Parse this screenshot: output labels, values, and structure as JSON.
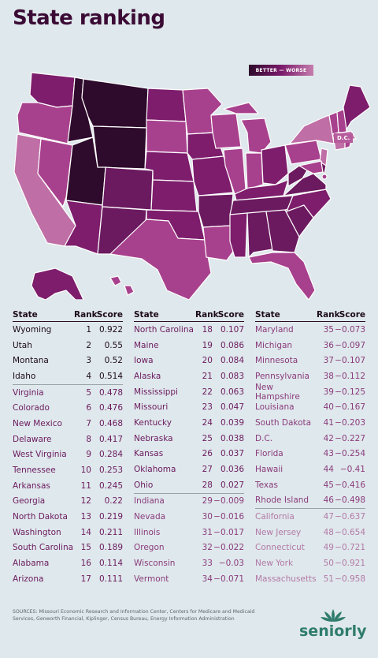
{
  "title": "State ranking",
  "legend": {
    "label": "BETTER — WORSE"
  },
  "dc_label": "D.C.",
  "table_headers": {
    "state": "State",
    "rank": "Rank",
    "score": "Score"
  },
  "chart_data": [
    {
      "type": "map",
      "color_scale": [
        "#2e0a2c",
        "#7a1a6a",
        "#c67dae"
      ]
    },
    {
      "type": "table",
      "columns": [
        "State",
        "Rank",
        "Score"
      ],
      "groups": [
        {
          "color": "#1c0a1b",
          "rows": [
            {
              "state": "Wyoming",
              "rank": "1",
              "score": "0.922"
            },
            {
              "state": "Utah",
              "rank": "2",
              "score": "0.55"
            },
            {
              "state": "Montana",
              "rank": "3",
              "score": "0.52"
            },
            {
              "state": "Idaho",
              "rank": "4",
              "score": "0.514"
            }
          ]
        },
        {
          "color": "#6b1a5f",
          "rows": [
            {
              "state": "Virginia",
              "rank": "5",
              "score": "0.478"
            },
            {
              "state": "Colorado",
              "rank": "6",
              "score": "0.476"
            },
            {
              "state": "New Mexico",
              "rank": "7",
              "score": "0.468"
            },
            {
              "state": "Delaware",
              "rank": "8",
              "score": "0.417"
            },
            {
              "state": "West Virginia",
              "rank": "9",
              "score": "0.284"
            },
            {
              "state": "Tennessee",
              "rank": "10",
              "score": "0.253"
            },
            {
              "state": "Arkansas",
              "rank": "11",
              "score": "0.245"
            },
            {
              "state": "Georgia",
              "rank": "12",
              "score": "0.22"
            },
            {
              "state": "North Dakota",
              "rank": "13",
              "score": "0.219"
            },
            {
              "state": "Washington",
              "rank": "14",
              "score": "0.211"
            },
            {
              "state": "South Carolina",
              "rank": "15",
              "score": "0.189"
            },
            {
              "state": "Alabama",
              "rank": "16",
              "score": "0.114"
            },
            {
              "state": "Arizona",
              "rank": "17",
              "score": "0.111"
            },
            {
              "state": "North Carolina",
              "rank": "18",
              "score": "0.107"
            },
            {
              "state": "Maine",
              "rank": "19",
              "score": "0.086"
            },
            {
              "state": "Iowa",
              "rank": "20",
              "score": "0.084"
            },
            {
              "state": "Alaska",
              "rank": "21",
              "score": "0.083"
            },
            {
              "state": "Mississippi",
              "rank": "22",
              "score": "0.063"
            },
            {
              "state": "Missouri",
              "rank": "23",
              "score": "0.047"
            },
            {
              "state": "Kentucky",
              "rank": "24",
              "score": "0.039"
            },
            {
              "state": "Nebraska",
              "rank": "25",
              "score": "0.038"
            },
            {
              "state": "Kansas",
              "rank": "26",
              "score": "0.037"
            },
            {
              "state": "Oklahoma",
              "rank": "27",
              "score": "0.036"
            },
            {
              "state": "Ohio",
              "rank": "28",
              "score": "0.027"
            }
          ]
        },
        {
          "color": "#8a3b7c",
          "rows": [
            {
              "state": "Indiana",
              "rank": "29",
              "score": "−0.009"
            },
            {
              "state": "Nevada",
              "rank": "30",
              "score": "−0.016"
            },
            {
              "state": "Illinois",
              "rank": "31",
              "score": "−0.017"
            },
            {
              "state": "Oregon",
              "rank": "32",
              "score": "−0.022"
            },
            {
              "state": "Wisconsin",
              "rank": "33",
              "score": "−0.03"
            },
            {
              "state": "Vermont",
              "rank": "34",
              "score": "−0.071"
            },
            {
              "state": "Maryland",
              "rank": "35",
              "score": "−0.073"
            },
            {
              "state": "Michigan",
              "rank": "36",
              "score": "−0.097"
            },
            {
              "state": "Minnesota",
              "rank": "37",
              "score": "−0.107"
            },
            {
              "state": "Pennsylvania",
              "rank": "38",
              "score": "−0.112"
            },
            {
              "state": "New Hampshire",
              "rank": "39",
              "score": "−0.125"
            },
            {
              "state": "Louisiana",
              "rank": "40",
              "score": "−0.167"
            },
            {
              "state": "South Dakota",
              "rank": "41",
              "score": "−0.203"
            },
            {
              "state": "D.C.",
              "rank": "42",
              "score": "−0.227"
            },
            {
              "state": "Florida",
              "rank": "43",
              "score": "−0.254"
            },
            {
              "state": "Hawaii",
              "rank": "44",
              "score": "−0.41"
            },
            {
              "state": "Texas",
              "rank": "45",
              "score": "−0.416"
            },
            {
              "state": "Rhode Island",
              "rank": "46",
              "score": "−0.498"
            }
          ]
        },
        {
          "color": "#b37aa8",
          "rows": [
            {
              "state": "California",
              "rank": "47",
              "score": "−0.637"
            },
            {
              "state": "New Jersey",
              "rank": "48",
              "score": "−0.654"
            },
            {
              "state": "Connecticut",
              "rank": "49",
              "score": "−0.721"
            },
            {
              "state": "New York",
              "rank": "50",
              "score": "−0.921"
            },
            {
              "state": "Massachusetts",
              "rank": "51",
              "score": "−0.958"
            }
          ]
        }
      ]
    }
  ],
  "sources": "SOURCES: Missouri Economic Research and Information Center, Centers for Medicare and Medicaid Services, Genworth Financial, Kiplinger, Census Bureau, Energy Information Administration",
  "brand": {
    "name": "seniorly",
    "color": "#2f7c6d"
  }
}
